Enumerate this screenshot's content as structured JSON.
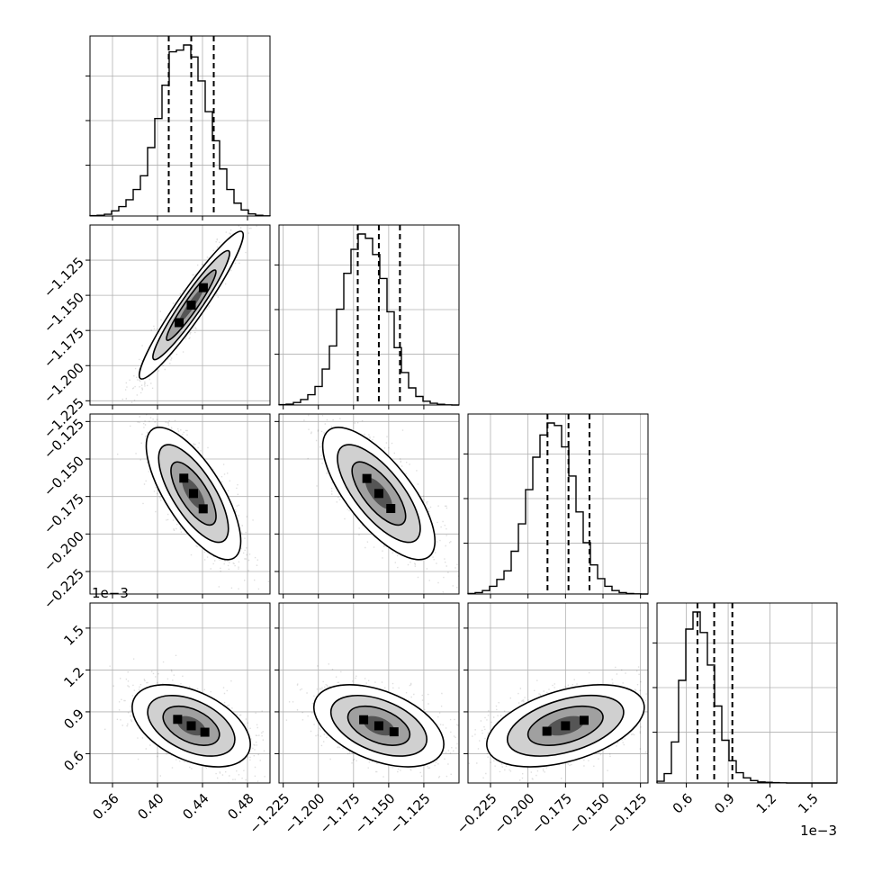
{
  "chart_data": {
    "type": "corner",
    "grid": true,
    "variables": [
      {
        "range": [
          0.34,
          0.5
        ],
        "ticks": [
          0.36,
          0.4,
          0.44,
          0.48
        ],
        "tick_labels": [
          "0.36",
          "0.40",
          "0.44",
          "0.48"
        ],
        "quantiles": [
          0.41,
          0.43,
          0.45
        ]
      },
      {
        "range": [
          -1.228,
          -1.1
        ],
        "ticks": [
          -1.225,
          -1.2,
          -1.175,
          -1.15,
          -1.125
        ],
        "tick_labels": [
          "−1.225",
          "−1.200",
          "−1.175",
          "−1.150",
          "−1.125"
        ],
        "quantiles": [
          -1.172,
          -1.157,
          -1.142
        ]
      },
      {
        "range": [
          -0.24,
          -0.12
        ],
        "ticks": [
          -0.225,
          -0.2,
          -0.175,
          -0.15,
          -0.125
        ],
        "tick_labels": [
          "−0.225",
          "−0.200",
          "−0.175",
          "−0.150",
          "−0.125"
        ],
        "quantiles": [
          -0.187,
          -0.173,
          -0.159
        ]
      },
      {
        "range": [
          0.39,
          1.68
        ],
        "ticks": [
          0.6,
          0.9,
          1.2,
          1.5
        ],
        "tick_labels": [
          "0.6",
          "0.9",
          "1.2",
          "1.5"
        ],
        "quantiles": [
          0.68,
          0.8,
          0.93
        ],
        "offset_label": "1e−3"
      }
    ],
    "histograms": [
      [
        0.002,
        0.004,
        0.01,
        0.03,
        0.055,
        0.095,
        0.155,
        0.235,
        0.4,
        0.57,
        0.765,
        0.96,
        0.97,
        1.0,
        0.93,
        0.79,
        0.61,
        0.44,
        0.275,
        0.155,
        0.075,
        0.035,
        0.012,
        0.004,
        0.001
      ],
      [
        0.002,
        0.005,
        0.015,
        0.032,
        0.06,
        0.108,
        0.21,
        0.345,
        0.56,
        0.77,
        0.91,
        1.0,
        0.975,
        0.88,
        0.74,
        0.545,
        0.335,
        0.19,
        0.1,
        0.05,
        0.022,
        0.01,
        0.004,
        0.001,
        0.0
      ],
      [
        0.003,
        0.008,
        0.02,
        0.045,
        0.085,
        0.135,
        0.25,
        0.41,
        0.61,
        0.8,
        0.93,
        1.0,
        0.985,
        0.86,
        0.69,
        0.48,
        0.3,
        0.17,
        0.09,
        0.045,
        0.02,
        0.008,
        0.003,
        0.001,
        0.0
      ],
      [
        0.01,
        0.055,
        0.24,
        0.6,
        0.9,
        1.0,
        0.88,
        0.69,
        0.45,
        0.25,
        0.13,
        0.06,
        0.03,
        0.014,
        0.006,
        0.004,
        0.002,
        0.001,
        0.0,
        0.0,
        0.0,
        0.0,
        0.0,
        0.0,
        0.0
      ]
    ],
    "pairs": [
      {
        "x": 0,
        "y": 1,
        "mean": [
          0.43,
          -1.157
        ],
        "sd": [
          0.022,
          0.025
        ],
        "rho": 0.95
      },
      {
        "x": 0,
        "y": 2,
        "mean": [
          0.432,
          -0.173
        ],
        "sd": [
          0.02,
          0.021
        ],
        "rho": -0.72
      },
      {
        "x": 1,
        "y": 2,
        "mean": [
          -1.157,
          -0.173
        ],
        "sd": [
          0.019,
          0.021
        ],
        "rho": -0.72
      },
      {
        "x": 0,
        "y": 3,
        "mean": [
          0.43,
          0.8
        ],
        "sd": [
          0.025,
          0.14
        ],
        "rho": -0.45
      },
      {
        "x": 1,
        "y": 3,
        "mean": [
          -1.157,
          0.8
        ],
        "sd": [
          0.022,
          0.14
        ],
        "rho": -0.45
      },
      {
        "x": 2,
        "y": 3,
        "mean": [
          -0.175,
          0.8
        ],
        "sd": [
          0.025,
          0.14
        ],
        "rho": 0.45
      }
    ]
  }
}
